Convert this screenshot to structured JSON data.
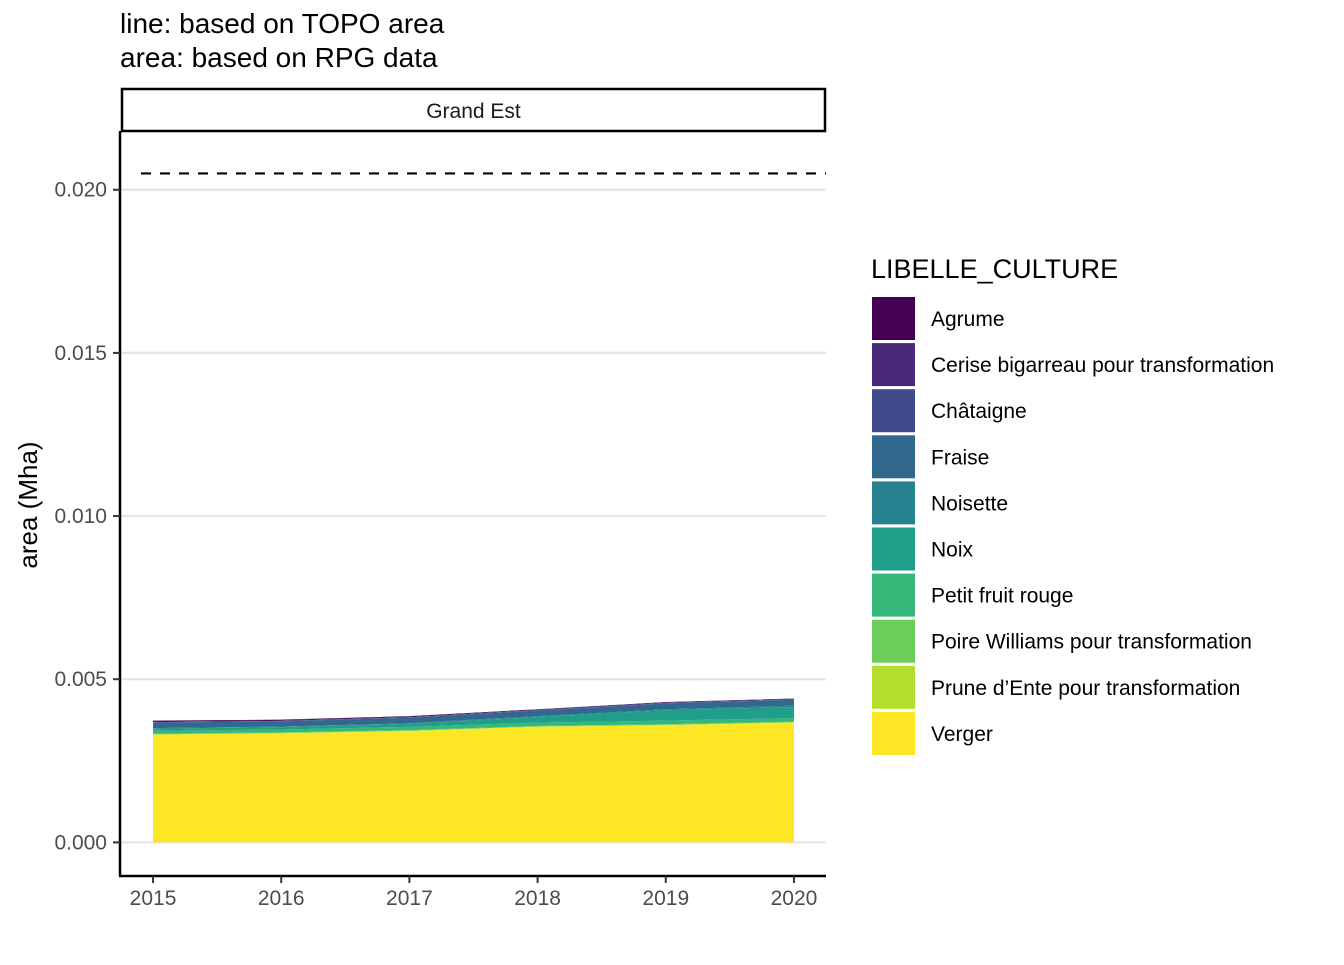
{
  "chart_data": {
    "type": "area",
    "title_lines": [
      "line: based on TOPO area",
      "area: based on RPG data"
    ],
    "facet": "Grand Est",
    "ylabel": "area (Mha)",
    "xlabel": "",
    "x": [
      2015,
      2016,
      2017,
      2018,
      2019,
      2020
    ],
    "x_ticks": [
      "2015",
      "2016",
      "2017",
      "2018",
      "2019",
      "2020"
    ],
    "y_ticks": [
      "0.000",
      "0.005",
      "0.010",
      "0.015",
      "0.020"
    ],
    "y_tick_values": [
      0,
      0.005,
      0.01,
      0.015,
      0.02
    ],
    "ylim": [
      -0.001,
      0.0218
    ],
    "xlim": [
      2014.75,
      2020.25
    ],
    "grid": "horizontal major",
    "reference_line": {
      "style": "dashed",
      "value": 0.0205
    },
    "legend": {
      "title": "LIBELLE_CULTURE",
      "position": "right"
    },
    "series": [
      {
        "name": "Agrume",
        "color": "#440154",
        "values": [
          3e-05,
          2e-05,
          2e-05,
          1e-05,
          1e-05,
          1e-05
        ]
      },
      {
        "name": "Cerise bigarreau pour transformation",
        "color": "#482878",
        "values": [
          2e-05,
          2e-05,
          2e-05,
          2e-05,
          2e-05,
          2e-05
        ]
      },
      {
        "name": "Châtaigne",
        "color": "#3E4A89",
        "values": [
          1e-05,
          1e-05,
          1e-05,
          1e-05,
          1e-05,
          1e-05
        ]
      },
      {
        "name": "Fraise",
        "color": "#31688E",
        "values": [
          0.00017,
          0.00016,
          0.00017,
          0.00017,
          0.00018,
          0.00018
        ]
      },
      {
        "name": "Noisette",
        "color": "#26828E",
        "values": [
          2e-05,
          2e-05,
          2e-05,
          3e-05,
          3e-05,
          4e-05
        ]
      },
      {
        "name": "Noix",
        "color": "#1F9E89",
        "values": [
          6e-05,
          7e-05,
          9e-05,
          0.00017,
          0.00032,
          0.00034
        ]
      },
      {
        "name": "Petit fruit rouge",
        "color": "#35B779",
        "values": [
          9e-05,
          9e-05,
          0.0001,
          0.0001,
          0.00011,
          0.00011
        ]
      },
      {
        "name": "Poire Williams pour transformation",
        "color": "#6DCD59",
        "values": [
          2e-05,
          2e-05,
          2e-05,
          2e-05,
          2e-05,
          2e-05
        ]
      },
      {
        "name": "Prune d’Ente pour transformation",
        "color": "#B4DE2C",
        "values": [
          1e-05,
          1e-05,
          1e-05,
          1e-05,
          1e-05,
          1e-05
        ]
      },
      {
        "name": "Verger",
        "color": "#FDE725",
        "values": [
          0.0033,
          0.00334,
          0.00341,
          0.00354,
          0.00359,
          0.00367
        ]
      }
    ]
  }
}
